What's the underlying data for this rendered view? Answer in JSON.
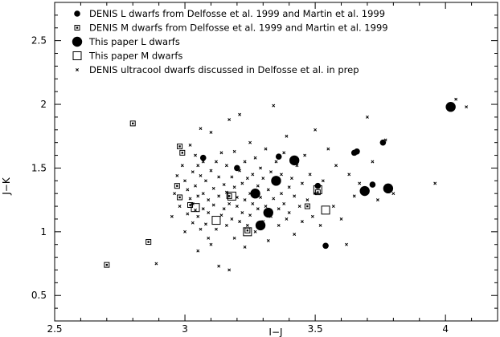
{
  "chart_data": {
    "type": "scatter",
    "xlabel": "I−J",
    "ylabel": "J−K",
    "xlim": [
      2.5,
      4.2
    ],
    "ylim": [
      0.3,
      2.8
    ],
    "x_ticks": [
      2.5,
      3,
      3.5,
      4
    ],
    "x_tick_labels": [
      "2.5",
      "3",
      "3.5",
      "4"
    ],
    "y_ticks": [
      0.5,
      1,
      1.5,
      2,
      2.5
    ],
    "y_tick_labels": [
      "0.5",
      "1",
      "1.5",
      "2",
      "2.5"
    ],
    "grid": false,
    "legend_position": "top-left",
    "series": [
      {
        "name": "DENIS L dwarfs from Delfosse et al. 1999 and Martin et al. 1999",
        "marker": "small-filled-circle",
        "points": [
          [
            3.07,
            1.58
          ],
          [
            3.2,
            1.5
          ],
          [
            3.36,
            1.59
          ],
          [
            3.51,
            1.36
          ],
          [
            3.54,
            0.89
          ],
          [
            3.65,
            1.62
          ],
          [
            3.66,
            1.63
          ],
          [
            3.72,
            1.37
          ],
          [
            3.76,
            1.7
          ]
        ]
      },
      {
        "name": "DENIS M dwarfs from Delfosse et al. 1999 and Martin et al. 1999",
        "marker": "small-open-square",
        "points": [
          [
            2.7,
            0.74
          ],
          [
            2.8,
            1.85
          ],
          [
            2.86,
            0.92
          ],
          [
            2.98,
            1.67
          ],
          [
            2.99,
            1.62
          ],
          [
            2.97,
            1.36
          ],
          [
            2.98,
            1.27
          ],
          [
            3.02,
            1.21
          ],
          [
            3.17,
            1.28
          ],
          [
            3.24,
            1.01
          ],
          [
            3.47,
            1.2
          ],
          [
            3.51,
            1.31
          ]
        ]
      },
      {
        "name": "This paper L dwarfs",
        "marker": "large-filled-circle",
        "points": [
          [
            3.27,
            1.3
          ],
          [
            3.29,
            1.05
          ],
          [
            3.32,
            1.15
          ],
          [
            3.35,
            1.4
          ],
          [
            3.42,
            1.56
          ],
          [
            3.69,
            1.32
          ],
          [
            3.78,
            1.34
          ],
          [
            4.02,
            1.98
          ]
        ]
      },
      {
        "name": "This paper M dwarfs",
        "marker": "large-open-square",
        "points": [
          [
            3.04,
            1.19
          ],
          [
            3.12,
            1.09
          ],
          [
            3.18,
            1.28
          ],
          [
            3.24,
            1.0
          ],
          [
            3.51,
            1.33
          ],
          [
            3.54,
            1.17
          ]
        ]
      },
      {
        "name": "DENIS ultracool dwarfs discussed in Delfosse et al. in prep",
        "marker": "cross",
        "points": [
          [
            2.89,
            0.75
          ],
          [
            2.95,
            1.12
          ],
          [
            2.96,
            1.3
          ],
          [
            2.97,
            1.44
          ],
          [
            2.98,
            1.2
          ],
          [
            2.99,
            1.52
          ],
          [
            3.0,
            1.0
          ],
          [
            3.0,
            1.4
          ],
          [
            3.01,
            1.14
          ],
          [
            3.01,
            1.33
          ],
          [
            3.02,
            1.68
          ],
          [
            3.02,
            1.26
          ],
          [
            3.03,
            1.07
          ],
          [
            3.03,
            1.47
          ],
          [
            3.03,
            1.22
          ],
          [
            3.04,
            1.6
          ],
          [
            3.04,
            1.17
          ],
          [
            3.04,
            1.36
          ],
          [
            3.05,
            0.85
          ],
          [
            3.05,
            1.12
          ],
          [
            3.05,
            1.52
          ],
          [
            3.05,
            1.28
          ],
          [
            3.06,
            1.44
          ],
          [
            3.06,
            1.02
          ],
          [
            3.06,
            1.81
          ],
          [
            3.07,
            1.18
          ],
          [
            3.07,
            1.3
          ],
          [
            3.07,
            1.55
          ],
          [
            3.08,
            1.06
          ],
          [
            3.08,
            1.4
          ],
          [
            3.09,
            1.25
          ],
          [
            3.09,
            0.95
          ],
          [
            3.09,
            1.15
          ],
          [
            3.1,
            1.48
          ],
          [
            3.1,
            1.78
          ],
          [
            3.1,
            0.9
          ],
          [
            3.11,
            1.34
          ],
          [
            3.11,
            1.21
          ],
          [
            3.12,
            1.55
          ],
          [
            3.12,
            1.02
          ],
          [
            3.13,
            1.28
          ],
          [
            3.13,
            0.73
          ],
          [
            3.13,
            1.43
          ],
          [
            3.14,
            1.13
          ],
          [
            3.14,
            1.62
          ],
          [
            3.15,
            1.37
          ],
          [
            3.15,
            1.18
          ],
          [
            3.16,
            1.05
          ],
          [
            3.16,
            1.52
          ],
          [
            3.16,
            1.31
          ],
          [
            3.17,
            0.7
          ],
          [
            3.17,
            1.88
          ],
          [
            3.17,
            1.22
          ],
          [
            3.18,
            1.43
          ],
          [
            3.18,
            1.1
          ],
          [
            3.19,
            1.35
          ],
          [
            3.19,
            1.63
          ],
          [
            3.19,
            0.95
          ],
          [
            3.2,
            1.2
          ],
          [
            3.2,
            1.27
          ],
          [
            3.21,
            1.48
          ],
          [
            3.21,
            1.08
          ],
          [
            3.21,
            1.92
          ],
          [
            3.22,
            1.38
          ],
          [
            3.22,
            1.15
          ],
          [
            3.23,
            1.55
          ],
          [
            3.23,
            1.25
          ],
          [
            3.23,
            0.88
          ],
          [
            3.24,
            1.42
          ],
          [
            3.24,
            1.05
          ],
          [
            3.25,
            1.7
          ],
          [
            3.25,
            1.3
          ],
          [
            3.25,
            1.13
          ],
          [
            3.26,
            1.45
          ],
          [
            3.26,
            1.22
          ],
          [
            3.27,
            1.0
          ],
          [
            3.27,
            1.58
          ],
          [
            3.28,
            1.36
          ],
          [
            3.28,
            1.18
          ],
          [
            3.29,
            1.5
          ],
          [
            3.29,
            1.27
          ],
          [
            3.3,
            1.08
          ],
          [
            3.3,
            1.42
          ],
          [
            3.31,
            1.65
          ],
          [
            3.31,
            1.2
          ],
          [
            3.32,
            1.33
          ],
          [
            3.32,
            0.93
          ],
          [
            3.33,
            1.47
          ],
          [
            3.33,
            1.12
          ],
          [
            3.34,
            1.99
          ],
          [
            3.34,
            1.26
          ],
          [
            3.35,
            1.55
          ],
          [
            3.35,
            1.38
          ],
          [
            3.36,
            1.05
          ],
          [
            3.36,
            1.18
          ],
          [
            3.37,
            1.45
          ],
          [
            3.37,
            1.3
          ],
          [
            3.38,
            1.22
          ],
          [
            3.38,
            1.62
          ],
          [
            3.39,
            1.1
          ],
          [
            3.39,
            1.75
          ],
          [
            3.4,
            1.35
          ],
          [
            3.4,
            1.15
          ],
          [
            3.41,
            1.42
          ],
          [
            3.42,
            1.28
          ],
          [
            3.42,
            0.98
          ],
          [
            3.43,
            1.52
          ],
          [
            3.44,
            1.2
          ],
          [
            3.45,
            1.38
          ],
          [
            3.45,
            1.08
          ],
          [
            3.46,
            1.6
          ],
          [
            3.47,
            1.25
          ],
          [
            3.48,
            1.45
          ],
          [
            3.49,
            1.12
          ],
          [
            3.5,
            1.8
          ],
          [
            3.5,
            1.3
          ],
          [
            3.52,
            1.05
          ],
          [
            3.53,
            1.4
          ],
          [
            3.55,
            1.65
          ],
          [
            3.57,
            1.2
          ],
          [
            3.58,
            1.52
          ],
          [
            3.6,
            1.1
          ],
          [
            3.62,
            0.9
          ],
          [
            3.63,
            1.45
          ],
          [
            3.65,
            1.28
          ],
          [
            3.67,
            1.38
          ],
          [
            3.7,
            1.9
          ],
          [
            3.72,
            1.55
          ],
          [
            3.74,
            1.25
          ],
          [
            3.77,
            1.72
          ],
          [
            3.8,
            1.3
          ],
          [
            3.96,
            1.38
          ],
          [
            4.04,
            2.04
          ],
          [
            4.08,
            1.98
          ]
        ]
      }
    ]
  }
}
